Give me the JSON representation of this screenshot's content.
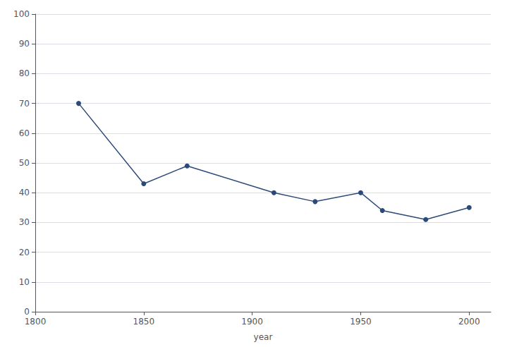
{
  "chart_data": {
    "type": "line",
    "x": [
      1820,
      1850,
      1870,
      1910,
      1929,
      1950,
      1960,
      1980,
      2000
    ],
    "values": [
      70,
      43,
      49,
      40,
      37,
      40,
      34,
      31,
      35
    ],
    "color": "#2b4a7a",
    "marker": "circle",
    "xlabel": "year",
    "xlim": [
      1800,
      2010
    ],
    "xticks": [
      1800,
      1850,
      1900,
      1950,
      2000
    ],
    "ylim": [
      0,
      100
    ],
    "yticks": [
      0,
      10,
      20,
      30,
      40,
      50,
      60,
      70,
      80,
      90,
      100
    ],
    "grid": true
  }
}
